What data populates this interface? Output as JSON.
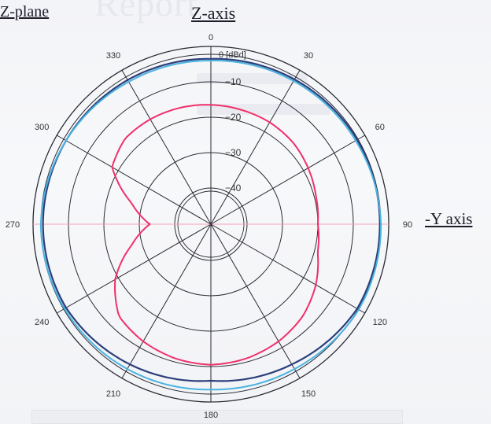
{
  "labels": {
    "plane": "Z-plane",
    "z_axis": "Z-axis",
    "y_axis": "-Y axis"
  },
  "chart_data": {
    "type": "polar-line",
    "unit_label": "0 [dBd]",
    "radial_ticks": [
      {
        "value": -10,
        "label": "−10"
      },
      {
        "value": -20,
        "label": "−20"
      },
      {
        "value": -30,
        "label": "−30"
      },
      {
        "value": -40,
        "label": "−40"
      }
    ],
    "r_range": [
      -50,
      0
    ],
    "angle_ticks": [
      0,
      30,
      60,
      90,
      120,
      150,
      180,
      210,
      240,
      270,
      300,
      330
    ],
    "angle_direction": "clockwise",
    "zero_at": "top",
    "series": [
      {
        "color": "#2b3f7a",
        "points": [
          [
            0,
            -3.5
          ],
          [
            30,
            -3.0
          ],
          [
            60,
            -2.5
          ],
          [
            90,
            -2.5
          ],
          [
            120,
            -2.5
          ],
          [
            150,
            -4.5
          ],
          [
            180,
            -6.0
          ],
          [
            210,
            -4.5
          ],
          [
            240,
            -3.0
          ],
          [
            270,
            -2.8
          ],
          [
            300,
            -3.0
          ],
          [
            330,
            -3.2
          ]
        ]
      },
      {
        "color": "#4ab3e0",
        "points": [
          [
            0,
            -4.0
          ],
          [
            30,
            -3.5
          ],
          [
            60,
            -3.0
          ],
          [
            90,
            -2.2
          ],
          [
            120,
            -2.0
          ],
          [
            150,
            -3.0
          ],
          [
            180,
            -3.5
          ],
          [
            210,
            -3.0
          ],
          [
            240,
            -2.5
          ],
          [
            270,
            -2.2
          ],
          [
            300,
            -3.0
          ],
          [
            330,
            -3.8
          ]
        ]
      },
      {
        "color": "#f0306a",
        "points": [
          [
            0,
            -16.5
          ],
          [
            15,
            -16.8
          ],
          [
            30,
            -17.0
          ],
          [
            45,
            -17.5
          ],
          [
            60,
            -18.5
          ],
          [
            75,
            -19.5
          ],
          [
            90,
            -20.0
          ],
          [
            105,
            -19.0
          ],
          [
            120,
            -16.0
          ],
          [
            135,
            -13.5
          ],
          [
            150,
            -12.0
          ],
          [
            165,
            -11.0
          ],
          [
            180,
            -10.5
          ],
          [
            195,
            -11.0
          ],
          [
            210,
            -12.0
          ],
          [
            225,
            -13.5
          ],
          [
            240,
            -19.0
          ],
          [
            255,
            -27.0
          ],
          [
            270,
            -33.0
          ],
          [
            285,
            -27.0
          ],
          [
            300,
            -18.0
          ],
          [
            315,
            -16.0
          ],
          [
            330,
            -16.0
          ],
          [
            345,
            -16.2
          ]
        ]
      }
    ]
  }
}
